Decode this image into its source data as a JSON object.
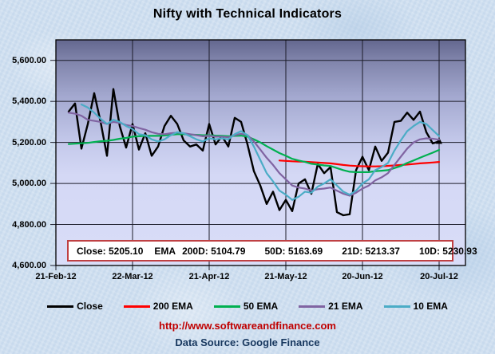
{
  "title": "Nifty with Technical Indicators",
  "footer": {
    "url": "http://www.softwareandfinance.com",
    "source": "Data Source: Google Finance"
  },
  "indicator_box": {
    "close": "Close: 5205.10",
    "ema_prefix": "EMA",
    "d200": "200D: 5104.79",
    "d50": "50D: 5163.69",
    "d21": "21D: 5213.37",
    "d10": "10D: 5230.93"
  },
  "colors": {
    "box_border": "#bf4043",
    "url_text": "#c00000",
    "source_text": "#17375e",
    "grid_line": "#1c1c2a",
    "plot_border": "#000000"
  },
  "chart_data": {
    "type": "line",
    "title": "Nifty with Technical Indicators",
    "xlabel": "",
    "ylabel": "",
    "ylim": [
      4600,
      5700
    ],
    "grid": true,
    "legend_position": "bottom",
    "plot_gradient": [
      "#63678e",
      "#7d81a8",
      "#a3a8cf",
      "#c3c8ea",
      "#d4d8f5",
      "#d9ddf8"
    ],
    "x_tick_labels": [
      "21-Feb-12",
      "22-Mar-12",
      "21-Apr-12",
      "21-May-12",
      "20-Jun-12",
      "20-Jul-12"
    ],
    "x_tick_index": [
      0,
      12,
      24,
      36,
      48,
      60
    ],
    "y_tick_values": [
      5600,
      5400,
      5200,
      5000,
      4800,
      4600
    ],
    "y_tick_labels": [
      "5,600.00",
      "5,400.00",
      "5,200.00",
      "5,000.00",
      "4,800.00",
      "4,600.00"
    ],
    "y_gridline_values": [
      5600,
      5400,
      5200,
      5000,
      4800
    ],
    "x_count": 61,
    "series": [
      {
        "name": "Close",
        "color": "#000000",
        "width": 2.4,
        "end_marker": true,
        "values": [
          null,
          null,
          5350,
          5390,
          5170,
          5290,
          5440,
          5300,
          5135,
          5460,
          5280,
          5175,
          5290,
          5165,
          5245,
          5135,
          5180,
          5280,
          5330,
          5290,
          5210,
          5180,
          5190,
          5160,
          5290,
          5190,
          5230,
          5180,
          5320,
          5300,
          5190,
          5060,
          4990,
          4900,
          4960,
          4870,
          4920,
          4865,
          5000,
          5020,
          4950,
          5095,
          5050,
          5080,
          4860,
          4845,
          4850,
          5065,
          5130,
          5065,
          5180,
          5110,
          5150,
          5300,
          5305,
          5345,
          5310,
          5350,
          5250,
          5195,
          5205.1
        ]
      },
      {
        "name": "200 EMA",
        "color": "#ff0000",
        "width": 2.2,
        "end_marker": false,
        "values": [
          null,
          null,
          null,
          null,
          null,
          null,
          null,
          null,
          null,
          null,
          null,
          null,
          null,
          null,
          null,
          null,
          null,
          null,
          null,
          null,
          null,
          null,
          null,
          null,
          null,
          null,
          null,
          null,
          null,
          null,
          null,
          null,
          null,
          null,
          null,
          5112,
          5110,
          5108,
          5107,
          5106,
          5104,
          5102,
          5100,
          5098,
          5094,
          5090,
          5087,
          5085,
          5084,
          5083,
          5083,
          5084,
          5086,
          5088,
          5090,
          5092,
          5095,
          5098,
          5100,
          5102,
          5104.79
        ]
      },
      {
        "name": "50 EMA",
        "color": "#00b050",
        "width": 2.2,
        "end_marker": false,
        "values": [
          null,
          null,
          5192,
          5194,
          5196,
          5198,
          5202,
          5206,
          5208,
          5212,
          5218,
          5222,
          5228,
          5230,
          5232,
          5232,
          5232,
          5234,
          5237,
          5240,
          5240,
          5238,
          5237,
          5235,
          5235,
          5233,
          5232,
          5230,
          5232,
          5233,
          5228,
          5215,
          5200,
          5182,
          5165,
          5148,
          5135,
          5120,
          5112,
          5105,
          5096,
          5092,
          5088,
          5085,
          5075,
          5065,
          5057,
          5055,
          5055,
          5055,
          5060,
          5062,
          5065,
          5075,
          5085,
          5100,
          5112,
          5125,
          5138,
          5150,
          5163.69
        ]
      },
      {
        "name": "21 EMA",
        "color": "#8064a2",
        "width": 2.2,
        "end_marker": false,
        "values": [
          null,
          null,
          5345,
          5340,
          5330,
          5310,
          5305,
          5300,
          5290,
          5300,
          5295,
          5285,
          5280,
          5270,
          5262,
          5250,
          5242,
          5240,
          5245,
          5248,
          5245,
          5240,
          5235,
          5230,
          5232,
          5228,
          5228,
          5225,
          5235,
          5242,
          5235,
          5205,
          5165,
          5125,
          5090,
          5050,
          5020,
          4990,
          4980,
          4975,
          4965,
          4972,
          4975,
          4980,
          4965,
          4950,
          4940,
          4955,
          4975,
          4990,
          5015,
          5030,
          5050,
          5090,
          5130,
          5170,
          5200,
          5215,
          5220,
          5218,
          5213.37
        ]
      },
      {
        "name": "10 EMA",
        "color": "#4bacc6",
        "width": 2.2,
        "end_marker": false,
        "values": [
          null,
          null,
          null,
          null,
          5385,
          5370,
          5345,
          5315,
          5290,
          5310,
          5300,
          5280,
          5265,
          5240,
          5235,
          5215,
          5205,
          5215,
          5235,
          5250,
          5245,
          5230,
          5215,
          5205,
          5220,
          5215,
          5220,
          5215,
          5240,
          5255,
          5235,
          5180,
          5115,
          5050,
          5010,
          4965,
          4945,
          4920,
          4935,
          4960,
          4955,
          4985,
          5000,
          5020,
          4990,
          4960,
          4945,
          4965,
          5000,
          5020,
          5065,
          5080,
          5100,
          5160,
          5210,
          5255,
          5280,
          5300,
          5290,
          5260,
          5230.93
        ]
      }
    ]
  }
}
